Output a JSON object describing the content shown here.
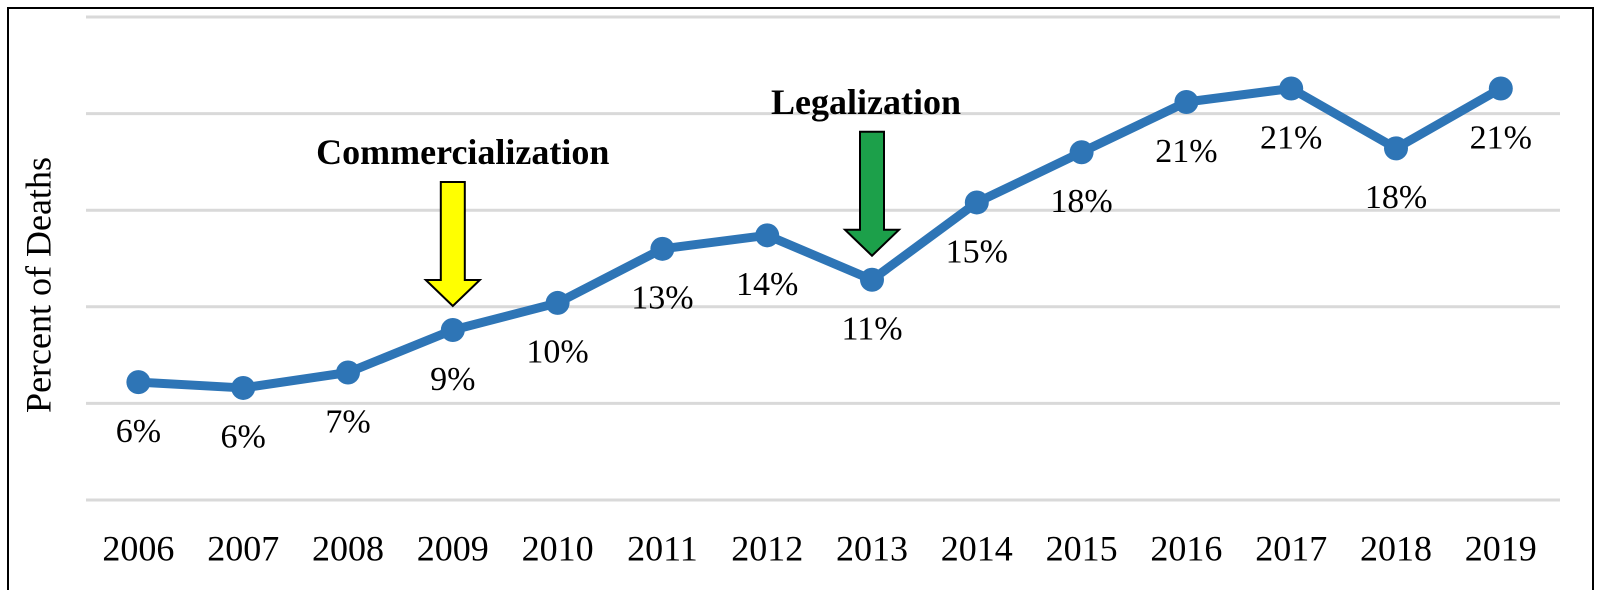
{
  "chart_data": {
    "type": "line",
    "y_label": "Percent of Deaths",
    "categories": [
      "2006",
      "2007",
      "2008",
      "2009",
      "2010",
      "2011",
      "2012",
      "2013",
      "2014",
      "2015",
      "2016",
      "2017",
      "2018",
      "2019"
    ],
    "series": [
      {
        "color": "#2e75b6",
        "values": [
          6.1,
          5.8,
          6.6,
          8.8,
          10.2,
          13.0,
          13.7,
          11.4,
          15.4,
          18.0,
          20.6,
          21.3,
          18.2,
          21.3
        ],
        "value_labels": [
          "6%",
          "6%",
          "7%",
          "9%",
          "10%",
          "13%",
          "14%",
          "11%",
          "15%",
          "18%",
          "21%",
          "21%",
          "18%",
          "21%"
        ]
      }
    ],
    "ylim": [
      0,
      25
    ],
    "yticks": [
      0,
      5,
      10,
      15,
      20,
      25
    ],
    "grid": true,
    "annotations": [
      {
        "text": "Commercialization",
        "category": "2009",
        "color": "#ffff00"
      },
      {
        "text": "Legalization",
        "category": "2013",
        "color": "#1ca04a"
      }
    ]
  }
}
